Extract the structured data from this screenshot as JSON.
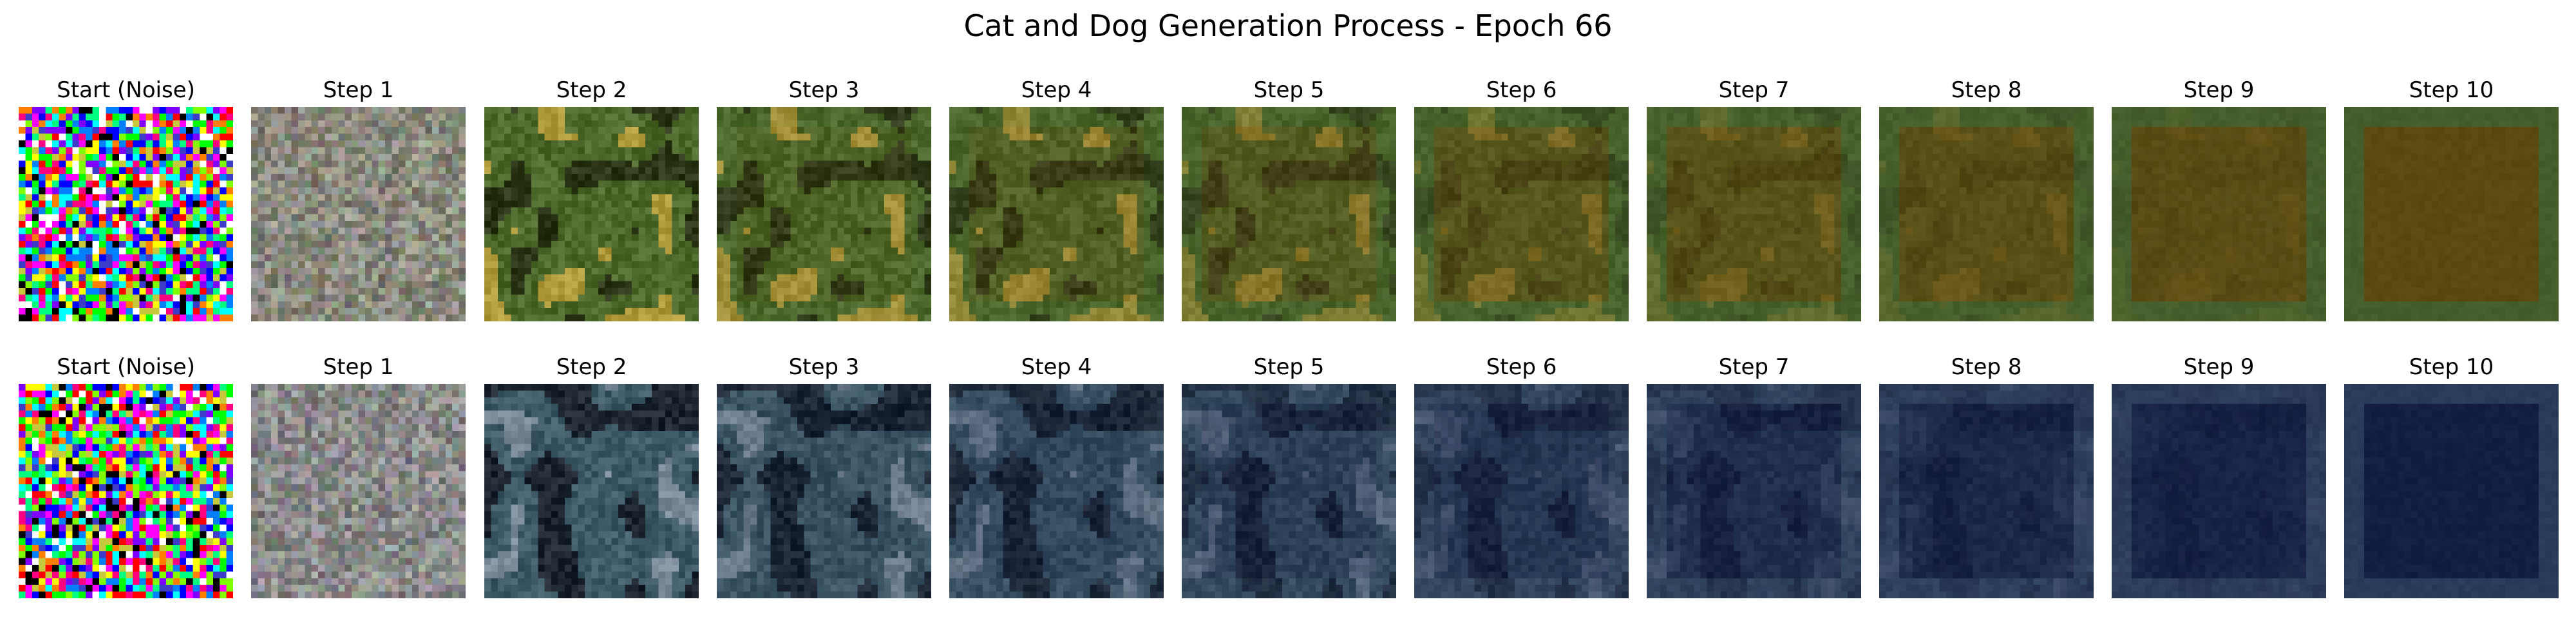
{
  "figure": {
    "title": "Cat and Dog Generation Process - Epoch 66"
  },
  "rows": [
    {
      "panels": [
        {
          "title": "Start (Noise)",
          "style": "noise",
          "seed": 11
        },
        {
          "title": "Step 1",
          "style": "blend",
          "t": 0.0,
          "seed": 101
        },
        {
          "title": "Step 2",
          "style": "blend",
          "t": 0.0,
          "seed": 102
        },
        {
          "title": "Step 3",
          "style": "blend",
          "t": 0.15,
          "seed": 103
        },
        {
          "title": "Step 4",
          "style": "blend",
          "t": 0.3,
          "seed": 104
        },
        {
          "title": "Step 5",
          "style": "blend",
          "t": 0.45,
          "seed": 105
        },
        {
          "title": "Step 6",
          "style": "blend",
          "t": 0.6,
          "seed": 106
        },
        {
          "title": "Step 7",
          "style": "blend",
          "t": 0.72,
          "seed": 107
        },
        {
          "title": "Step 8",
          "style": "blend",
          "t": 0.82,
          "seed": 108
        },
        {
          "title": "Step 9",
          "style": "blend",
          "t": 0.91,
          "seed": 109
        },
        {
          "title": "Step 10",
          "style": "blend",
          "t": 1.0,
          "seed": 110
        }
      ],
      "palette": {
        "gray_base": "#8a8a7e",
        "structure_bg": "#4d6a2c",
        "structure_dark": "#2c3518",
        "structure_accent": "#b09a3c",
        "end_center": "#5a4a12",
        "end_border": "#455d2b"
      }
    },
    {
      "panels": [
        {
          "title": "Start (Noise)",
          "style": "noise",
          "seed": 22
        },
        {
          "title": "Step 1",
          "style": "blend",
          "t": 0.0,
          "seed": 201
        },
        {
          "title": "Step 2",
          "style": "blend",
          "t": 0.0,
          "seed": 202
        },
        {
          "title": "Step 3",
          "style": "blend",
          "t": 0.15,
          "seed": 203
        },
        {
          "title": "Step 4",
          "style": "blend",
          "t": 0.3,
          "seed": 204
        },
        {
          "title": "Step 5",
          "style": "blend",
          "t": 0.45,
          "seed": 205
        },
        {
          "title": "Step 6",
          "style": "blend",
          "t": 0.6,
          "seed": 206
        },
        {
          "title": "Step 7",
          "style": "blend",
          "t": 0.72,
          "seed": 207
        },
        {
          "title": "Step 8",
          "style": "blend",
          "t": 0.82,
          "seed": 208
        },
        {
          "title": "Step 9",
          "style": "blend",
          "t": 0.91,
          "seed": 209
        },
        {
          "title": "Step 10",
          "style": "blend",
          "t": 1.0,
          "seed": 210
        }
      ],
      "palette": {
        "gray_base": "#8a8a8a",
        "structure_bg": "#3e5a66",
        "structure_dark": "#1c2530",
        "structure_accent": "#7a8a98",
        "end_center": "#141e44",
        "end_border": "#2a3a5a"
      }
    }
  ]
}
